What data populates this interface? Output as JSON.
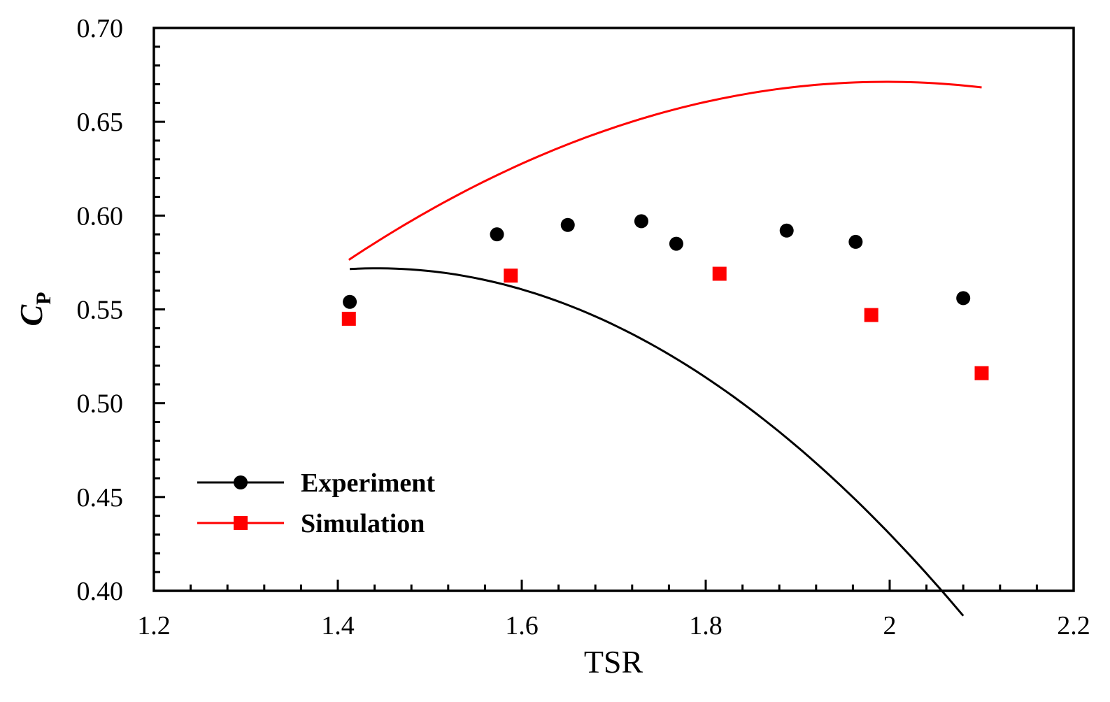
{
  "chart_data": {
    "type": "scatter",
    "xlabel": "TSR",
    "ylabel": {
      "main": "C",
      "sub": "P"
    },
    "xlim": [
      1.2,
      2.2
    ],
    "ylim": [
      0.4,
      0.7
    ],
    "xticks": [
      {
        "value": 1.2,
        "label": "1.2"
      },
      {
        "value": 1.4,
        "label": "1.4"
      },
      {
        "value": 1.6,
        "label": "1.6"
      },
      {
        "value": 1.8,
        "label": "1.8"
      },
      {
        "value": 2.0,
        "label": "2"
      },
      {
        "value": 2.2,
        "label": "2.2"
      }
    ],
    "yticks": [
      {
        "value": 0.4,
        "label": "0.40"
      },
      {
        "value": 0.45,
        "label": "0.45"
      },
      {
        "value": 0.5,
        "label": "0.50"
      },
      {
        "value": 0.55,
        "label": "0.55"
      },
      {
        "value": 0.6,
        "label": "0.60"
      },
      {
        "value": 0.65,
        "label": "0.65"
      },
      {
        "value": 0.7,
        "label": "0.70"
      }
    ],
    "grid": false,
    "legend_position": "lower-left",
    "series": [
      {
        "name": "Experiment",
        "color": "#000000",
        "marker": "circle",
        "points": [
          {
            "x": 1.413,
            "y": 0.554
          },
          {
            "x": 1.573,
            "y": 0.59
          },
          {
            "x": 1.65,
            "y": 0.595
          },
          {
            "x": 1.73,
            "y": 0.597
          },
          {
            "x": 1.768,
            "y": 0.585
          },
          {
            "x": 1.888,
            "y": 0.592
          },
          {
            "x": 1.963,
            "y": 0.586
          },
          {
            "x": 2.08,
            "y": 0.556
          }
        ],
        "fit_range": [
          1.413,
          2.08
        ],
        "fit_coefficients": [
          -0.4565,
          1.3175,
          -0.3787
        ]
      },
      {
        "name": "Simulation",
        "color": "#ff0000",
        "marker": "square",
        "points": [
          {
            "x": 1.412,
            "y": 0.545
          },
          {
            "x": 1.588,
            "y": 0.568
          },
          {
            "x": 1.815,
            "y": 0.569
          },
          {
            "x": 1.98,
            "y": 0.547
          },
          {
            "x": 2.1,
            "y": 0.516
          }
        ],
        "fit_range": [
          1.412,
          2.1
        ],
        "fit_coefficients": [
          -0.2778,
          1.1092,
          -0.4359
        ]
      }
    ]
  }
}
